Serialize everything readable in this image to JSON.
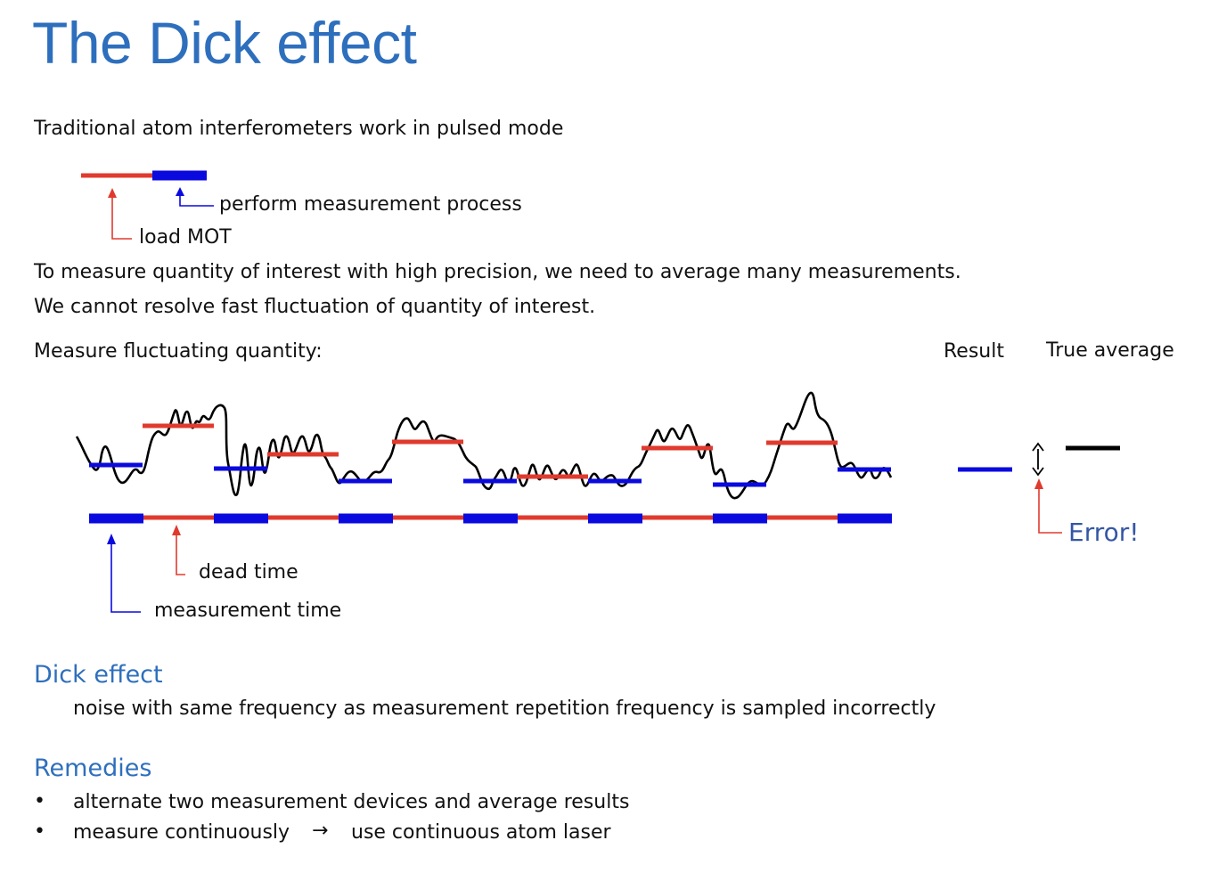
{
  "title": "The Dick effect",
  "intro": "Traditional atom interferometers work in pulsed mode",
  "pulse_labels": {
    "measure": "perform measurement process",
    "load": "load MOT"
  },
  "para1": "To measure quantity of interest with high precision, we need to average many measurements.",
  "para2": "We cannot resolve fast fluctuation of quantity of interest.",
  "fluct_label": "Measure fluctuating quantity:",
  "result_label": "Result",
  "true_avg_label": "True average",
  "error_label": "Error!",
  "dead_time_label": "dead time",
  "measurement_time_label": "measurement time",
  "dick_heading": "Dick effect",
  "dick_text": "noise with same frequency as measurement repetition frequency is sampled incorrectly",
  "remedies_heading": "Remedies",
  "remedies": [
    "alternate two measurement devices and average results",
    "measure continuously",
    "use continuous atom laser"
  ],
  "colors": {
    "title": "#2e6fbd",
    "measurement": "#0a0adf",
    "dead": "#e03a2e",
    "signal": "#000000",
    "error_text": "#3457a4"
  }
}
